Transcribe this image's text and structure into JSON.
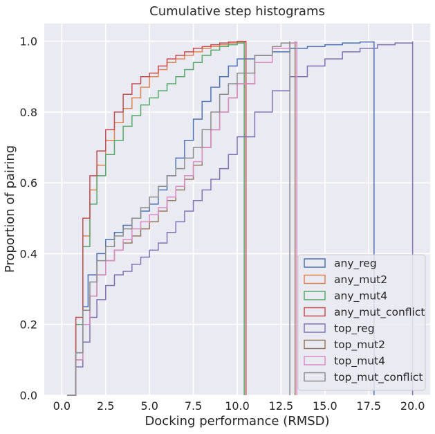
{
  "chart_data": {
    "type": "line",
    "title": "Cumulative step histograms",
    "xlabel": "Docking performance (RMSD)",
    "ylabel": "Proportion of pairing",
    "xlim": [
      -1.0,
      21.0
    ],
    "ylim": [
      0.0,
      1.05
    ],
    "x_ticks": [
      0.0,
      2.5,
      5.0,
      7.5,
      10.0,
      12.5,
      15.0,
      17.5,
      20.0
    ],
    "x_tick_labels": [
      "0.0",
      "2.5",
      "5.0",
      "7.5",
      "10.0",
      "12.5",
      "15.0",
      "17.5",
      "20.0"
    ],
    "y_ticks": [
      0.0,
      0.2,
      0.4,
      0.6,
      0.8,
      1.0
    ],
    "y_tick_labels": [
      "0.0",
      "0.2",
      "0.4",
      "0.6",
      "0.8",
      "1.0"
    ],
    "grid": true,
    "legend_position": "lower-right",
    "series": [
      {
        "name": "any_reg",
        "color": "#4c72b0",
        "x": [
          0.3,
          0.8,
          1.2,
          1.5,
          2.0,
          2.5,
          3.0,
          3.5,
          4.0,
          4.5,
          5.0,
          5.5,
          6.0,
          6.5,
          7.0,
          7.5,
          8.0,
          8.5,
          9.0,
          9.5,
          10.0,
          11.0,
          12.0,
          13.0,
          14.0,
          15.0,
          16.0,
          17.0,
          17.8
        ],
        "y": [
          0.0,
          0.12,
          0.25,
          0.34,
          0.4,
          0.44,
          0.46,
          0.48,
          0.5,
          0.52,
          0.54,
          0.58,
          0.62,
          0.67,
          0.72,
          0.78,
          0.83,
          0.87,
          0.9,
          0.93,
          0.95,
          0.96,
          0.97,
          0.98,
          0.985,
          0.99,
          0.995,
          0.998,
          1.0
        ]
      },
      {
        "name": "any_mut2",
        "color": "#dd8452",
        "x": [
          0.3,
          0.8,
          1.2,
          1.6,
          2.0,
          2.5,
          3.0,
          3.5,
          4.0,
          4.5,
          5.0,
          5.5,
          6.0,
          6.5,
          7.0,
          7.5,
          8.0,
          8.5,
          9.0,
          9.5,
          10.0,
          10.5
        ],
        "y": [
          0.0,
          0.2,
          0.45,
          0.58,
          0.65,
          0.72,
          0.77,
          0.81,
          0.84,
          0.87,
          0.9,
          0.92,
          0.94,
          0.95,
          0.96,
          0.97,
          0.98,
          0.985,
          0.99,
          0.995,
          0.998,
          1.0
        ]
      },
      {
        "name": "any_mut4",
        "color": "#55a868",
        "x": [
          0.3,
          0.8,
          1.2,
          1.6,
          2.0,
          2.5,
          3.0,
          3.5,
          4.0,
          4.5,
          5.0,
          5.5,
          6.0,
          6.5,
          7.0,
          7.5,
          8.0,
          8.5,
          9.0,
          9.5,
          10.0,
          10.4
        ],
        "y": [
          0.0,
          0.2,
          0.42,
          0.54,
          0.62,
          0.68,
          0.72,
          0.76,
          0.79,
          0.82,
          0.84,
          0.86,
          0.88,
          0.9,
          0.92,
          0.94,
          0.96,
          0.975,
          0.985,
          0.99,
          0.995,
          1.0
        ]
      },
      {
        "name": "any_mut_conflict",
        "color": "#c44e52",
        "x": [
          0.3,
          0.8,
          1.2,
          1.6,
          2.0,
          2.5,
          3.0,
          3.5,
          4.0,
          4.5,
          5.0,
          5.5,
          6.0,
          6.5,
          7.0,
          7.5,
          8.0,
          8.5,
          9.0,
          9.5,
          10.0,
          10.5
        ],
        "y": [
          0.0,
          0.22,
          0.5,
          0.62,
          0.69,
          0.75,
          0.8,
          0.85,
          0.88,
          0.9,
          0.91,
          0.93,
          0.95,
          0.96,
          0.97,
          0.98,
          0.985,
          0.99,
          0.995,
          0.998,
          1.0,
          1.0
        ]
      },
      {
        "name": "top_reg",
        "color": "#8172b3",
        "x": [
          0.3,
          0.8,
          1.2,
          1.6,
          2.0,
          2.5,
          3.0,
          3.5,
          4.0,
          4.5,
          5.0,
          5.5,
          6.0,
          6.5,
          7.0,
          7.5,
          8.0,
          8.5,
          9.0,
          9.5,
          10.0,
          11.0,
          12.0,
          13.0,
          14.0,
          15.0,
          16.0,
          17.0,
          18.0,
          19.0,
          20.0
        ],
        "y": [
          0.0,
          0.08,
          0.15,
          0.22,
          0.27,
          0.31,
          0.34,
          0.35,
          0.37,
          0.39,
          0.41,
          0.43,
          0.46,
          0.49,
          0.52,
          0.55,
          0.58,
          0.61,
          0.64,
          0.68,
          0.73,
          0.8,
          0.86,
          0.9,
          0.93,
          0.95,
          0.97,
          0.98,
          0.99,
          0.995,
          1.0
        ]
      },
      {
        "name": "top_mut2",
        "color": "#937860",
        "x": [
          0.3,
          0.8,
          1.2,
          1.6,
          2.0,
          2.5,
          3.0,
          3.5,
          4.0,
          4.5,
          5.0,
          5.5,
          6.0,
          6.5,
          7.0,
          7.5,
          8.0,
          8.5,
          9.0,
          9.5,
          10.0,
          11.0,
          12.0,
          13.0,
          13.3
        ],
        "y": [
          0.0,
          0.1,
          0.2,
          0.28,
          0.34,
          0.38,
          0.41,
          0.43,
          0.45,
          0.47,
          0.49,
          0.52,
          0.55,
          0.58,
          0.61,
          0.65,
          0.7,
          0.75,
          0.8,
          0.84,
          0.88,
          0.94,
          0.98,
          0.995,
          1.0
        ]
      },
      {
        "name": "top_mut4",
        "color": "#da8bc3",
        "x": [
          0.3,
          0.8,
          1.2,
          1.6,
          2.0,
          2.5,
          3.0,
          3.5,
          4.0,
          4.5,
          5.0,
          5.5,
          6.0,
          6.5,
          7.0,
          7.5,
          8.0,
          8.5,
          9.0,
          9.5,
          10.0,
          11.0,
          12.0,
          13.0,
          13.4
        ],
        "y": [
          0.0,
          0.1,
          0.2,
          0.28,
          0.34,
          0.38,
          0.41,
          0.44,
          0.47,
          0.49,
          0.51,
          0.53,
          0.56,
          0.59,
          0.62,
          0.66,
          0.7,
          0.75,
          0.8,
          0.84,
          0.88,
          0.94,
          0.98,
          0.995,
          1.0
        ]
      },
      {
        "name": "top_mut_conflict",
        "color": "#8c8c8c",
        "x": [
          0.3,
          0.8,
          1.2,
          1.6,
          2.0,
          2.5,
          3.0,
          3.5,
          4.0,
          4.5,
          5.0,
          5.5,
          6.0,
          6.5,
          7.0,
          7.5,
          8.0,
          8.5,
          9.0,
          9.5,
          10.0,
          11.0,
          12.0,
          12.5,
          13.0
        ],
        "y": [
          0.0,
          0.12,
          0.24,
          0.32,
          0.38,
          0.42,
          0.45,
          0.47,
          0.5,
          0.53,
          0.56,
          0.59,
          0.62,
          0.64,
          0.67,
          0.7,
          0.75,
          0.8,
          0.85,
          0.88,
          0.91,
          0.96,
          0.985,
          0.995,
          1.0
        ]
      }
    ]
  }
}
